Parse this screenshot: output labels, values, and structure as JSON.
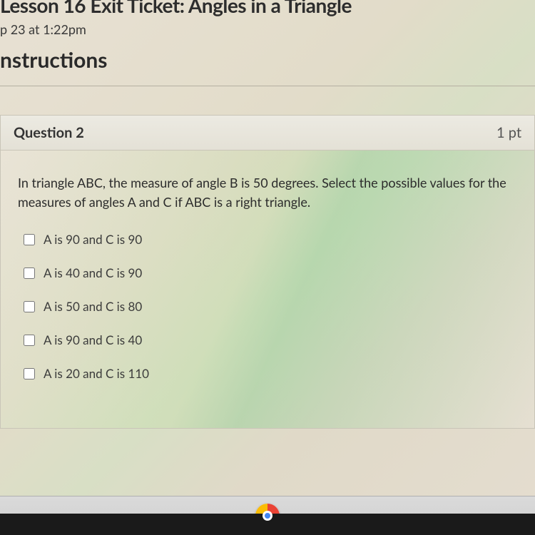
{
  "header": {
    "title": "Lesson 16 Exit Ticket: Angles in a Triangle",
    "timestamp": "p 23 at 1:22pm",
    "instructions_label": "nstructions"
  },
  "question": {
    "label": "Question 2",
    "points": "1 pt",
    "prompt": "In triangle ABC, the measure of angle B is 50 degrees.  Select the possible values for the measures of angles A and C if ABC is a right triangle.",
    "options": [
      "A is 90 and C is 90",
      "A is 40 and C is 90",
      "A is 50 and C is 80",
      "A is 90 and C is 40",
      "A is 20 and C is 110"
    ]
  },
  "taskbar": {
    "chrome_icon": "chrome"
  }
}
